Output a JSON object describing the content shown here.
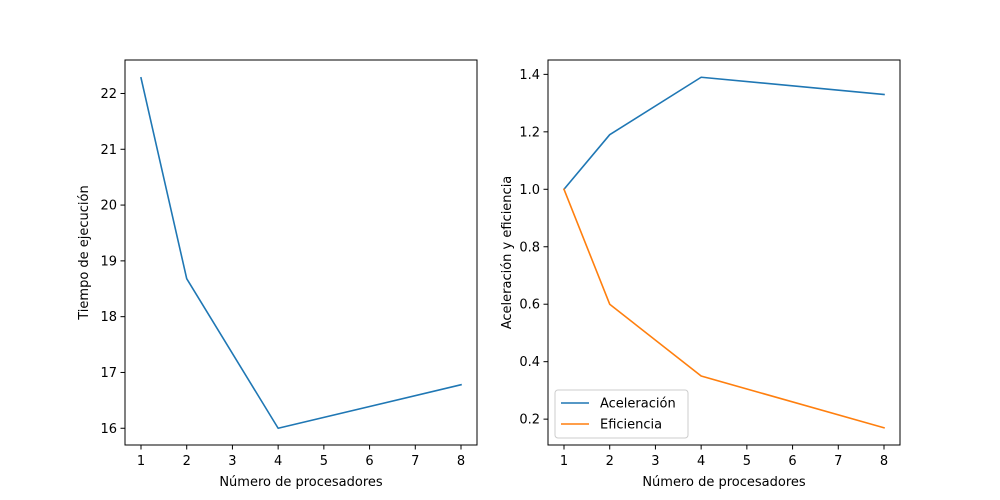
{
  "chart_data": [
    {
      "type": "line",
      "title": "",
      "xlabel": "Número de procesadores",
      "ylabel": "Tiempo de ejecución",
      "xlim": [
        0.65,
        8.35
      ],
      "ylim": [
        15.7,
        22.6
      ],
      "xticks": [
        1,
        2,
        3,
        4,
        5,
        6,
        7,
        8
      ],
      "yticks": [
        16,
        17,
        18,
        19,
        20,
        21,
        22
      ],
      "grid": false,
      "legend": null,
      "series": [
        {
          "name": "",
          "color": "#1f77b4",
          "x": [
            1,
            2,
            4,
            8
          ],
          "y": [
            22.28,
            18.68,
            16.0,
            16.78
          ]
        }
      ]
    },
    {
      "type": "line",
      "title": "",
      "xlabel": "Número de procesadores",
      "ylabel": "Aceleración y eficiencia",
      "xlim": [
        0.65,
        8.35
      ],
      "ylim": [
        0.11,
        1.45
      ],
      "xticks": [
        1,
        2,
        3,
        4,
        5,
        6,
        7,
        8
      ],
      "yticks": [
        0.2,
        0.4,
        0.6,
        0.8,
        1.0,
        1.2,
        1.4
      ],
      "grid": false,
      "legend": "lower-left",
      "series": [
        {
          "name": "Aceleración",
          "color": "#1f77b4",
          "x": [
            1,
            2,
            4,
            8
          ],
          "y": [
            1.0,
            1.19,
            1.39,
            1.33
          ]
        },
        {
          "name": "Eficiencia",
          "color": "#ff7f0e",
          "x": [
            1,
            2,
            4,
            8
          ],
          "y": [
            1.0,
            0.6,
            0.35,
            0.17
          ]
        }
      ]
    }
  ]
}
